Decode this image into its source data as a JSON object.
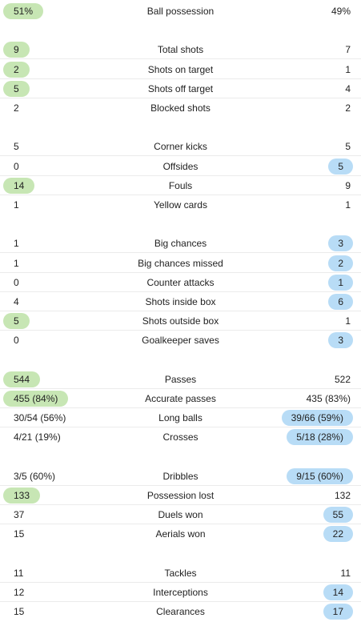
{
  "colors": {
    "home_highlight": "#c7e6b4",
    "away_highlight": "#b8dcf6",
    "divider": "#ebebeb"
  },
  "groups": [
    {
      "rows": [
        {
          "label": "Ball possession",
          "home": "51%",
          "away": "49%",
          "winner": "home"
        }
      ]
    },
    {
      "rows": [
        {
          "label": "Total shots",
          "home": "9",
          "away": "7",
          "winner": "home"
        },
        {
          "label": "Shots on target",
          "home": "2",
          "away": "1",
          "winner": "home"
        },
        {
          "label": "Shots off target",
          "home": "5",
          "away": "4",
          "winner": "home"
        },
        {
          "label": "Blocked shots",
          "home": "2",
          "away": "2",
          "winner": "none"
        }
      ]
    },
    {
      "rows": [
        {
          "label": "Corner kicks",
          "home": "5",
          "away": "5",
          "winner": "none"
        },
        {
          "label": "Offsides",
          "home": "0",
          "away": "5",
          "winner": "away"
        },
        {
          "label": "Fouls",
          "home": "14",
          "away": "9",
          "winner": "home"
        },
        {
          "label": "Yellow cards",
          "home": "1",
          "away": "1",
          "winner": "none"
        }
      ]
    },
    {
      "rows": [
        {
          "label": "Big chances",
          "home": "1",
          "away": "3",
          "winner": "away"
        },
        {
          "label": "Big chances missed",
          "home": "1",
          "away": "2",
          "winner": "away"
        },
        {
          "label": "Counter attacks",
          "home": "0",
          "away": "1",
          "winner": "away"
        },
        {
          "label": "Shots inside box",
          "home": "4",
          "away": "6",
          "winner": "away"
        },
        {
          "label": "Shots outside box",
          "home": "5",
          "away": "1",
          "winner": "home"
        },
        {
          "label": "Goalkeeper saves",
          "home": "0",
          "away": "3",
          "winner": "away"
        }
      ]
    },
    {
      "rows": [
        {
          "label": "Passes",
          "home": "544",
          "away": "522",
          "winner": "home"
        },
        {
          "label": "Accurate passes",
          "home": "455 (84%)",
          "away": "435 (83%)",
          "winner": "home"
        },
        {
          "label": "Long balls",
          "home": "30/54 (56%)",
          "away": "39/66 (59%)",
          "winner": "away"
        },
        {
          "label": "Crosses",
          "home": "4/21 (19%)",
          "away": "5/18 (28%)",
          "winner": "away"
        }
      ]
    },
    {
      "rows": [
        {
          "label": "Dribbles",
          "home": "3/5 (60%)",
          "away": "9/15 (60%)",
          "winner": "away"
        },
        {
          "label": "Possession lost",
          "home": "133",
          "away": "132",
          "winner": "home"
        },
        {
          "label": "Duels won",
          "home": "37",
          "away": "55",
          "winner": "away"
        },
        {
          "label": "Aerials won",
          "home": "15",
          "away": "22",
          "winner": "away"
        }
      ]
    },
    {
      "rows": [
        {
          "label": "Tackles",
          "home": "11",
          "away": "11",
          "winner": "none"
        },
        {
          "label": "Interceptions",
          "home": "12",
          "away": "14",
          "winner": "away"
        },
        {
          "label": "Clearances",
          "home": "15",
          "away": "17",
          "winner": "away"
        }
      ]
    }
  ]
}
